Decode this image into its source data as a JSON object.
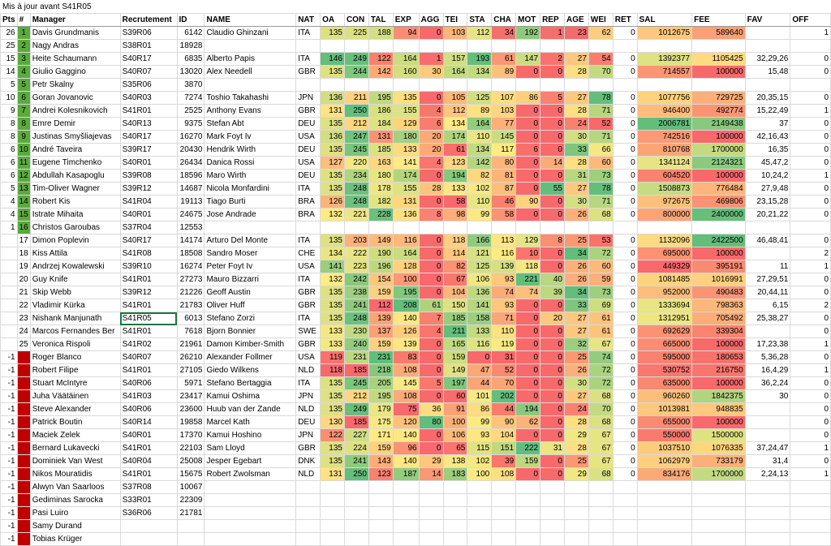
{
  "title": "Mis à jour avant S41R05",
  "columns": [
    "Pts",
    "#",
    "Manager",
    "Recrutement",
    "ID",
    "NAME",
    "NAT",
    "OA",
    "CON",
    "TAL",
    "EXP",
    "AGG",
    "TEI",
    "STA",
    "CHA",
    "MOT",
    "REP",
    "AGE",
    "WEI",
    "RET",
    "SAL",
    "FEE",
    "FAV",
    "OFF"
  ],
  "status_colors": {
    "active": "#5aab3c",
    "out": "#c00000"
  },
  "selected": {
    "row": 22,
    "col": 3
  },
  "rows": [
    [
      "26",
      "1",
      "Davis Grundmanis",
      "S39R06",
      "6142",
      "Claudio Ghinzani",
      "ITA",
      "135",
      "225",
      "188",
      "94",
      "0",
      "103",
      "112",
      "34",
      "192",
      "1",
      "23",
      "62",
      "0",
      "1012675",
      "589640",
      "",
      "1"
    ],
    [
      "25",
      "2",
      "Nagy Andras",
      "S38R01",
      "18928",
      "",
      "",
      "",
      "",
      "",
      "",
      "",
      "",
      "",
      "",
      "",
      "",
      "",
      "",
      "",
      "",
      "",
      "",
      ""
    ],
    [
      "15",
      "3",
      "Heite Schaumann",
      "S40R17",
      "6835",
      "Alberto Papis",
      "ITA",
      "146",
      "249",
      "122",
      "164",
      "1",
      "157",
      "193",
      "61",
      "147",
      "2",
      "27",
      "54",
      "0",
      "1392377",
      "1105425",
      "32,29,26",
      "0"
    ],
    [
      "14",
      "4",
      "Giulio Gaggino",
      "S40R07",
      "13020",
      "Alex Needell",
      "GBR",
      "135",
      "244",
      "142",
      "160",
      "30",
      "164",
      "134",
      "89",
      "0",
      "0",
      "28",
      "70",
      "0",
      "714557",
      "100000",
      "15,48",
      "0"
    ],
    [
      "5",
      "5",
      "Petr Skalny",
      "S35R06",
      "3870",
      "",
      "",
      "",
      "",
      "",
      "",
      "",
      "",
      "",
      "",
      "",
      "",
      "",
      "",
      "",
      "",
      "",
      "",
      ""
    ],
    [
      "10",
      "6",
      "Goran Jovanovic",
      "S40R03",
      "7274",
      "Toshio Takahashi",
      "JPN",
      "136",
      "211",
      "195",
      "135",
      "0",
      "105",
      "125",
      "107",
      "86",
      "5",
      "27",
      "78",
      "0",
      "1077756",
      "729725",
      "20,35,15",
      "0"
    ],
    [
      "9",
      "7",
      "Andrei Kolesnikovich",
      "S41R01",
      "2525",
      "Anthony Evans",
      "GBR",
      "131",
      "250",
      "186",
      "155",
      "4",
      "112",
      "89",
      "103",
      "0",
      "0",
      "28",
      "71",
      "0",
      "946400",
      "492774",
      "15,22,49",
      "1"
    ],
    [
      "8",
      "8",
      "Emre Demir",
      "S40R13",
      "9375",
      "Stefan Abt",
      "DEU",
      "135",
      "212",
      "184",
      "129",
      "6",
      "134",
      "164",
      "77",
      "0",
      "0",
      "24",
      "52",
      "0",
      "2006781",
      "2149438",
      "37",
      "0"
    ],
    [
      "8",
      "9",
      "Justinas Smyšliajevas",
      "S40R17",
      "16270",
      "Mark Foyt Iv",
      "USA",
      "136",
      "247",
      "131",
      "180",
      "20",
      "174",
      "110",
      "145",
      "0",
      "0",
      "30",
      "71",
      "0",
      "742516",
      "100000",
      "42,16,43",
      "0"
    ],
    [
      "6",
      "10",
      "André Taveira",
      "S39R17",
      "20430",
      "Hendrik Wirth",
      "DEU",
      "135",
      "245",
      "185",
      "133",
      "20",
      "61",
      "134",
      "117",
      "6",
      "0",
      "33",
      "66",
      "0",
      "810768",
      "1700000",
      "16,35",
      "0"
    ],
    [
      "6",
      "11",
      "Eugene Timchenko",
      "S40R01",
      "26434",
      "Danica Rossi",
      "USA",
      "127",
      "220",
      "163",
      "141",
      "4",
      "123",
      "142",
      "80",
      "0",
      "14",
      "28",
      "60",
      "0",
      "1341124",
      "2124321",
      "45,47,2",
      "0"
    ],
    [
      "6",
      "12",
      "Abdullah Kasapoglu",
      "S39R08",
      "18596",
      "Maro Wirth",
      "DEU",
      "135",
      "234",
      "180",
      "174",
      "0",
      "194",
      "82",
      "81",
      "0",
      "0",
      "31",
      "73",
      "0",
      "604520",
      "100000",
      "10,24,2",
      "1"
    ],
    [
      "5",
      "13",
      "Tim-Oliver Wagner",
      "S39R12",
      "14687",
      "Nicola Monfardini",
      "ITA",
      "135",
      "248",
      "178",
      "155",
      "28",
      "133",
      "102",
      "87",
      "0",
      "55",
      "27",
      "78",
      "0",
      "1508873",
      "776484",
      "27,9,48",
      "0"
    ],
    [
      "4",
      "14",
      "Robert Kis",
      "S41R04",
      "19113",
      "Tiago Burti",
      "BRA",
      "126",
      "248",
      "182",
      "131",
      "0",
      "58",
      "110",
      "46",
      "90",
      "0",
      "30",
      "71",
      "0",
      "972675",
      "469806",
      "23,15,28",
      "0"
    ],
    [
      "4",
      "15",
      "Istrate Mihaita",
      "S40R01",
      "24675",
      "Jose Andrade",
      "BRA",
      "132",
      "221",
      "228",
      "136",
      "8",
      "98",
      "99",
      "58",
      "0",
      "0",
      "26",
      "68",
      "0",
      "800000",
      "2400000",
      "20,21,22",
      "0"
    ],
    [
      "1",
      "16",
      "Christos Garoubas",
      "S37R04",
      "12553",
      "",
      "",
      "",
      "",
      "",
      "",
      "",
      "",
      "",
      "",
      "",
      "",
      "",
      "",
      "",
      "",
      "",
      "",
      ""
    ],
    [
      "",
      "17",
      "Dimon Poplevin",
      "S40R17",
      "14174",
      "Arturo Del Monte",
      "ITA",
      "135",
      "203",
      "149",
      "116",
      "0",
      "118",
      "166",
      "113",
      "129",
      "8",
      "25",
      "53",
      "0",
      "1132096",
      "2422500",
      "46,48,41",
      "0"
    ],
    [
      "",
      "18",
      "Kiss Attila",
      "S41R08",
      "18508",
      "Sandro Moser",
      "CHE",
      "134",
      "222",
      "190",
      "164",
      "0",
      "114",
      "121",
      "116",
      "10",
      "0",
      "34",
      "72",
      "0",
      "695000",
      "100000",
      "",
      "2"
    ],
    [
      "",
      "19",
      "Andrzej Kowalewski",
      "S39R10",
      "16274",
      "Peter Foyt Iv",
      "USA",
      "141",
      "223",
      "196",
      "128",
      "0",
      "82",
      "125",
      "139",
      "118",
      "0",
      "26",
      "60",
      "0",
      "449329",
      "395191",
      "11",
      "1"
    ],
    [
      "",
      "20",
      "Guy Knife",
      "S41R01",
      "27273",
      "Mauro Bizzarri",
      "ITA",
      "132",
      "242",
      "154",
      "100",
      "0",
      "67",
      "106",
      "93",
      "221",
      "40",
      "26",
      "59",
      "0",
      "1081485",
      "1016991",
      "27,29,51",
      "0"
    ],
    [
      "",
      "21",
      "Skip Webb",
      "S39R12",
      "21226",
      "Geoff Austin",
      "GBR",
      "135",
      "238",
      "159",
      "195",
      "0",
      "104",
      "136",
      "74",
      "74",
      "39",
      "34",
      "73",
      "0",
      "952000",
      "490483",
      "20,44,11",
      "0"
    ],
    [
      "",
      "22",
      "Vladimir Kürka",
      "S41R01",
      "21783",
      "Oliver Huff",
      "GBR",
      "135",
      "241",
      "112",
      "208",
      "61",
      "150",
      "141",
      "93",
      "0",
      "0",
      "33",
      "69",
      "0",
      "1333694",
      "798363",
      "6,15",
      "2"
    ],
    [
      "",
      "23",
      "Nishank Manjunath",
      "S41R05",
      "6013",
      "Stefano Zorzi",
      "ITA",
      "135",
      "248",
      "139",
      "140",
      "7",
      "185",
      "158",
      "71",
      "0",
      "20",
      "27",
      "61",
      "0",
      "1312951",
      "705492",
      "25,38,27",
      "0"
    ],
    [
      "",
      "24",
      "Marcos Fernandes Ber",
      "S41R01",
      "7618",
      "Bjorn Bonnier",
      "SWE",
      "133",
      "230",
      "137",
      "126",
      "4",
      "211",
      "133",
      "110",
      "0",
      "0",
      "27",
      "61",
      "0",
      "692629",
      "339304",
      "",
      "0"
    ],
    [
      "",
      "25",
      "Veronica Rispoli",
      "S41R02",
      "21961",
      "Damon Kimber-Smith",
      "GBR",
      "133",
      "240",
      "159",
      "139",
      "0",
      "165",
      "116",
      "119",
      "0",
      "0",
      "32",
      "67",
      "0",
      "665000",
      "100000",
      "17,23,38",
      "1"
    ],
    [
      "-1",
      "",
      "Roger Blanco",
      "S40R07",
      "26210",
      "Alexander Follmer",
      "USA",
      "119",
      "231",
      "231",
      "83",
      "0",
      "159",
      "0",
      "31",
      "0",
      "0",
      "25",
      "74",
      "0",
      "595000",
      "180653",
      "5,36,28",
      "0"
    ],
    [
      "-1",
      "",
      "Robert Filipe",
      "S41R01",
      "27105",
      "Giedo Wilkens",
      "NLD",
      "118",
      "185",
      "218",
      "108",
      "0",
      "149",
      "47",
      "52",
      "0",
      "0",
      "26",
      "72",
      "0",
      "530752",
      "216750",
      "16,4,29",
      "1"
    ],
    [
      "-1",
      "",
      "Stuart McIntyre",
      "S40R06",
      "5971",
      "Stefano Bertaggia",
      "ITA",
      "135",
      "245",
      "205",
      "145",
      "5",
      "197",
      "44",
      "70",
      "0",
      "0",
      "30",
      "72",
      "0",
      "635000",
      "100000",
      "36,2,24",
      "0"
    ],
    [
      "-1",
      "",
      "Juha Väätäinen",
      "S41R03",
      "23417",
      "Kamui Oshima",
      "JPN",
      "135",
      "212",
      "195",
      "108",
      "0",
      "60",
      "101",
      "202",
      "0",
      "0",
      "27",
      "68",
      "0",
      "960260",
      "1842375",
      "30",
      "0"
    ],
    [
      "-1",
      "",
      "Steve Alexander",
      "S40R06",
      "23600",
      "Huub van der Zande",
      "NLD",
      "135",
      "249",
      "179",
      "75",
      "36",
      "91",
      "86",
      "44",
      "194",
      "0",
      "24",
      "70",
      "0",
      "1013981",
      "948835",
      "",
      "0"
    ],
    [
      "-1",
      "",
      "Patrick Boutin",
      "S40R14",
      "19858",
      "Marcel Kath",
      "DEU",
      "130",
      "185",
      "175",
      "120",
      "80",
      "100",
      "99",
      "90",
      "62",
      "0",
      "28",
      "68",
      "0",
      "655000",
      "100000",
      "",
      "0"
    ],
    [
      "-1",
      "",
      "Maciek Zelek",
      "S40R01",
      "17370",
      "Kamui Hoshino",
      "JPN",
      "122",
      "227",
      "171",
      "140",
      "0",
      "106",
      "93",
      "104",
      "0",
      "0",
      "29",
      "67",
      "0",
      "550000",
      "1500000",
      "",
      "0"
    ],
    [
      "-1",
      "",
      "Bernard Lukavecki",
      "S41R01",
      "22103",
      "Sam Lloyd",
      "GBR",
      "135",
      "224",
      "159",
      "96",
      "0",
      "65",
      "115",
      "151",
      "222",
      "31",
      "28",
      "67",
      "0",
      "1037510",
      "1076335",
      "37,24,47",
      "1"
    ],
    [
      "-1",
      "",
      "Dominiek Van West",
      "S40R04",
      "25008",
      "Jesper Egebart",
      "DNK",
      "135",
      "241",
      "143",
      "140",
      "29",
      "138",
      "102",
      "39",
      "159",
      "0",
      "25",
      "67",
      "0",
      "1062979",
      "733179",
      "31,4",
      "0"
    ],
    [
      "-1",
      "",
      "Nikos Mouratidis",
      "S41R01",
      "15675",
      "Robert Zwolsman",
      "NLD",
      "131",
      "250",
      "123",
      "187",
      "14",
      "183",
      "100",
      "108",
      "0",
      "0",
      "29",
      "68",
      "0",
      "834176",
      "1700000",
      "2,24,13",
      "1"
    ],
    [
      "-1",
      "",
      "Alwyn Van Saarloos",
      "S37R08",
      "10067",
      "",
      "",
      "",
      "",
      "",
      "",
      "",
      "",
      "",
      "",
      "",
      "",
      "",
      "",
      "",
      "",
      "",
      "",
      ""
    ],
    [
      "-1",
      "",
      "Gediminas Sarocka",
      "S33R01",
      "22309",
      "",
      "",
      "",
      "",
      "",
      "",
      "",
      "",
      "",
      "",
      "",
      "",
      "",
      "",
      "",
      "",
      "",
      "",
      ""
    ],
    [
      "-1",
      "",
      "Pasi Luiro",
      "S36R06",
      "21781",
      "",
      "",
      "",
      "",
      "",
      "",
      "",
      "",
      "",
      "",
      "",
      "",
      "",
      "",
      "",
      "",
      "",
      "",
      ""
    ],
    [
      "-1",
      "",
      "Samy Durand",
      "",
      "",
      "",
      "",
      "",
      "",
      "",
      "",
      "",
      "",
      "",
      "",
      "",
      "",
      "",
      "",
      "",
      "",
      "",
      "",
      ""
    ],
    [
      "-1",
      "",
      "Tobias Krüger",
      "",
      "",
      "",
      "",
      "",
      "",
      "",
      "",
      "",
      "",
      "",
      "",
      "",
      "",
      "",
      "",
      "",
      "",
      "",
      "",
      ""
    ]
  ]
}
